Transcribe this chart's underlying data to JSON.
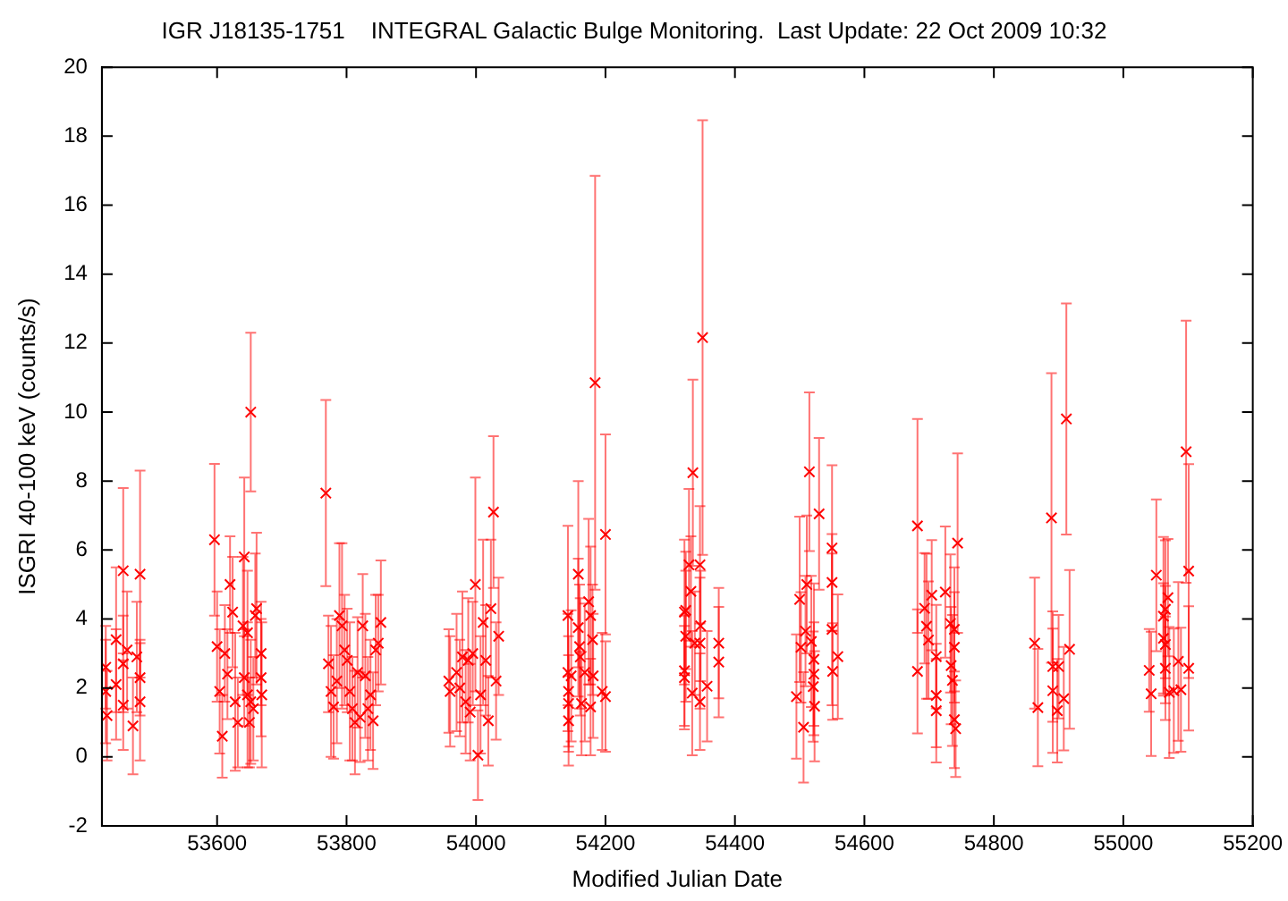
{
  "chart_data": {
    "type": "scatter",
    "title": "IGR J18135-1751    INTEGRAL Galactic Bulge Monitoring.  Last Update: 22 Oct 2009 10:32",
    "xlabel": "Modified Julian Date",
    "ylabel": "ISGRI 40-100 keV (counts/s)",
    "xlim": [
      53422,
      55200
    ],
    "xticks": [
      53600,
      53800,
      54000,
      54200,
      54400,
      54600,
      54800,
      55000,
      55200
    ],
    "ylim": [
      -2,
      20
    ],
    "yticks": [
      -2,
      0,
      2,
      4,
      6,
      8,
      10,
      12,
      14,
      16,
      18,
      20
    ],
    "grid": false,
    "legend": false,
    "marker": "cross",
    "series": [
      {
        "color": "#ff0000",
        "x": [
          53428,
          53428,
          53430,
          53444,
          53444,
          53455,
          53455,
          53455,
          53461,
          53470,
          53476,
          53481,
          53481,
          53481,
          53596,
          53600,
          53604,
          53608,
          53612,
          53616,
          53620,
          53624,
          53628,
          53632,
          53640,
          53642,
          53642,
          53647,
          53647,
          53650,
          53652,
          53652,
          53656,
          53659,
          53661,
          53668,
          53668,
          53669,
          53768,
          53772,
          53776,
          53780,
          53785,
          53789,
          53793,
          53797,
          53801,
          53805,
          53809,
          53813,
          53817,
          53821,
          53825,
          53829,
          53833,
          53837,
          53841,
          53845,
          53849,
          53853,
          53958,
          53960,
          53970,
          53975,
          53979,
          53984,
          53988,
          53991,
          53995,
          53999,
          54003,
          54007,
          54011,
          54015,
          54019,
          54023,
          54027,
          54031,
          54035,
          54142,
          54142,
          54143,
          54143,
          54143,
          54147,
          54158,
          54158,
          54160,
          54161,
          54163,
          54168,
          54174,
          54177,
          54180,
          54177,
          54181,
          54184,
          54195,
          54200,
          54200,
          54322,
          54322,
          54322,
          54324,
          54324,
          54329,
          54332,
          54334,
          54335,
          54338,
          54346,
          54346,
          54346,
          54347,
          54350,
          54357,
          54375,
          54375,
          54495,
          54500,
          54502,
          54506,
          54509,
          54511,
          54515,
          54518,
          54521,
          54522,
          54522,
          54523,
          54530,
          54550,
          54550,
          54550,
          54551,
          54559,
          54682,
          54682,
          54693,
          54696,
          54699,
          54704,
          54711,
          54711,
          54711,
          54725,
          54733,
          54734,
          54736,
          54739,
          54739,
          54741,
          54744,
          54739,
          54863,
          54868,
          54889,
          54891,
          54891,
          54898,
          54900,
          54908,
          54912,
          54917,
          55040,
          55043,
          55051,
          55062,
          55065,
          55062,
          55065,
          55065,
          55069,
          55071,
          55078,
          55085,
          55089,
          55097,
          55101,
          55101
        ],
        "values": [
          2.6,
          1.9,
          1.2,
          3.4,
          2.1,
          5.4,
          2.7,
          1.5,
          3.1,
          0.9,
          2.9,
          5.3,
          2.3,
          1.6,
          6.3,
          3.2,
          1.9,
          0.6,
          3.0,
          2.4,
          5.0,
          4.2,
          1.6,
          1.0,
          3.8,
          5.8,
          2.3,
          3.6,
          1.8,
          1.0,
          1.6,
          10.0,
          1.4,
          4.1,
          4.3,
          3.0,
          2.3,
          1.8,
          7.65,
          2.7,
          1.9,
          1.45,
          2.2,
          4.1,
          3.8,
          3.1,
          2.8,
          1.9,
          1.4,
          1.0,
          2.45,
          1.15,
          3.8,
          2.35,
          1.4,
          1.8,
          1.05,
          3.1,
          3.3,
          3.9,
          2.2,
          1.9,
          2.45,
          2.0,
          2.9,
          1.6,
          2.8,
          1.3,
          3.0,
          5.0,
          0.05,
          1.8,
          3.9,
          2.8,
          1.05,
          4.3,
          7.1,
          2.2,
          3.5,
          4.1,
          2.45,
          1.9,
          1.55,
          1.05,
          2.35,
          5.3,
          3.75,
          3.2,
          2.9,
          1.55,
          2.45,
          4.5,
          4.1,
          3.4,
          1.45,
          2.35,
          10.85,
          1.9,
          1.75,
          6.45,
          4.2,
          2.5,
          2.3,
          4.25,
          3.5,
          5.57,
          4.8,
          1.85,
          8.24,
          3.3,
          5.57,
          3.3,
          1.6,
          3.8,
          12.16,
          2.05,
          3.3,
          2.75,
          1.75,
          4.57,
          3.18,
          0.86,
          3.65,
          5.0,
          8.27,
          3.35,
          2.04,
          2.83,
          2.4,
          1.47,
          7.05,
          6.06,
          5.06,
          3.7,
          2.48,
          2.91,
          6.7,
          2.48,
          4.31,
          3.79,
          3.39,
          4.69,
          2.91,
          1.78,
          1.34,
          4.78,
          3.87,
          2.65,
          2.22,
          3.18,
          1.08,
          0.82,
          6.2,
          3.7,
          3.3,
          1.43,
          6.93,
          2.62,
          1.92,
          1.34,
          2.62,
          1.69,
          9.8,
          3.12,
          2.51,
          1.83,
          5.27,
          4.08,
          4.28,
          3.44,
          3.26,
          2.57,
          4.62,
          1.87,
          1.92,
          2.77,
          1.95,
          8.85,
          5.39,
          2.57
        ],
        "errors": [
          1.2,
          1.5,
          1.3,
          2.1,
          1.6,
          2.4,
          1.4,
          1.3,
          1.7,
          1.4,
          1.6,
          3.0,
          1.1,
          1.7,
          2.2,
          1.6,
          1.8,
          1.2,
          1.4,
          1.3,
          1.4,
          1.6,
          2.0,
          1.3,
          2.0,
          2.3,
          1.4,
          1.8,
          2.1,
          1.3,
          1.8,
          2.3,
          1.5,
          1.8,
          2.2,
          1.5,
          1.7,
          2.1,
          2.7,
          1.4,
          1.9,
          1.5,
          1.8,
          2.1,
          2.4,
          1.6,
          1.5,
          2.0,
          1.5,
          1.5,
          1.6,
          1.3,
          1.5,
          1.8,
          1.5,
          1.6,
          1.4,
          1.6,
          1.4,
          1.8,
          1.5,
          1.6,
          1.7,
          1.4,
          1.9,
          1.5,
          1.8,
          1.4,
          1.5,
          3.1,
          1.3,
          1.7,
          2.4,
          1.6,
          1.3,
          2.0,
          2.2,
          1.7,
          1.7,
          2.6,
          1.7,
          1.6,
          1.4,
          1.3,
          1.9,
          2.7,
          2.0,
          1.8,
          1.7,
          1.5,
          2.0,
          2.4,
          2.0,
          1.6,
          1.4,
          1.8,
          6.0,
          1.7,
          1.6,
          2.9,
          2.1,
          1.6,
          1.5,
          1.7,
          1.9,
          2.2,
          1.6,
          1.8,
          2.7,
          1.5,
          1.7,
          1.9,
          1.4,
          1.6,
          6.3,
          1.6,
          1.6,
          1.6,
          1.8,
          2.4,
          1.6,
          1.6,
          1.6,
          2.0,
          2.3,
          1.9,
          1.6,
          2.2,
          1.5,
          1.6,
          2.2,
          2.4,
          1.4,
          2.2,
          1.4,
          1.8,
          3.1,
          1.8,
          1.6,
          2.1,
          1.7,
          1.6,
          1.5,
          1.5,
          1.5,
          1.9,
          2.0,
          1.7,
          1.9,
          1.6,
          1.4,
          1.4,
          2.6,
          1.8,
          1.9,
          1.7,
          4.2,
          1.6,
          1.8,
          1.5,
          1.5,
          1.5,
          3.35,
          2.3,
          1.2,
          1.8,
          2.2,
          2.3,
          2.0,
          1.6,
          1.7,
          1.5,
          1.7,
          1.9,
          1.8,
          2.3,
          1.8,
          3.8,
          3.1,
          1.8
        ]
      }
    ]
  }
}
